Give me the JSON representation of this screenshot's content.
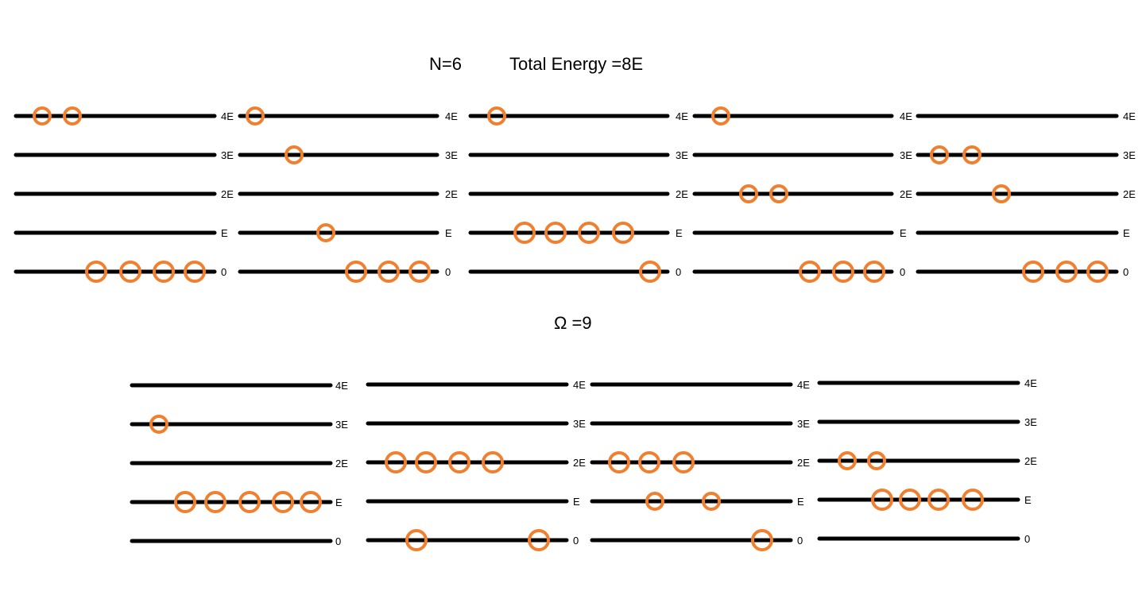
{
  "header": {
    "n_text": "N=6",
    "energy_text": "Total Energy =8E",
    "omega_text": "Ω =9"
  },
  "level_labels": [
    "0",
    "E",
    "2E",
    "3E",
    "4E"
  ],
  "colors": {
    "line": "#000000",
    "particle": "#f07f2e"
  },
  "configurations": [
    {
      "occupancy": [
        4,
        0,
        0,
        0,
        2
      ]
    },
    {
      "occupancy": [
        3,
        1,
        0,
        1,
        1
      ]
    },
    {
      "occupancy": [
        1,
        4,
        0,
        0,
        1
      ]
    },
    {
      "occupancy": [
        3,
        0,
        2,
        0,
        1
      ]
    },
    {
      "occupancy": [
        3,
        0,
        1,
        2,
        0
      ]
    },
    {
      "occupancy": [
        0,
        5,
        0,
        1,
        0
      ]
    },
    {
      "occupancy": [
        2,
        0,
        4,
        0,
        0
      ]
    },
    {
      "occupancy": [
        1,
        2,
        3,
        0,
        0
      ]
    },
    {
      "occupancy": [
        0,
        4,
        2,
        0,
        0
      ]
    }
  ]
}
